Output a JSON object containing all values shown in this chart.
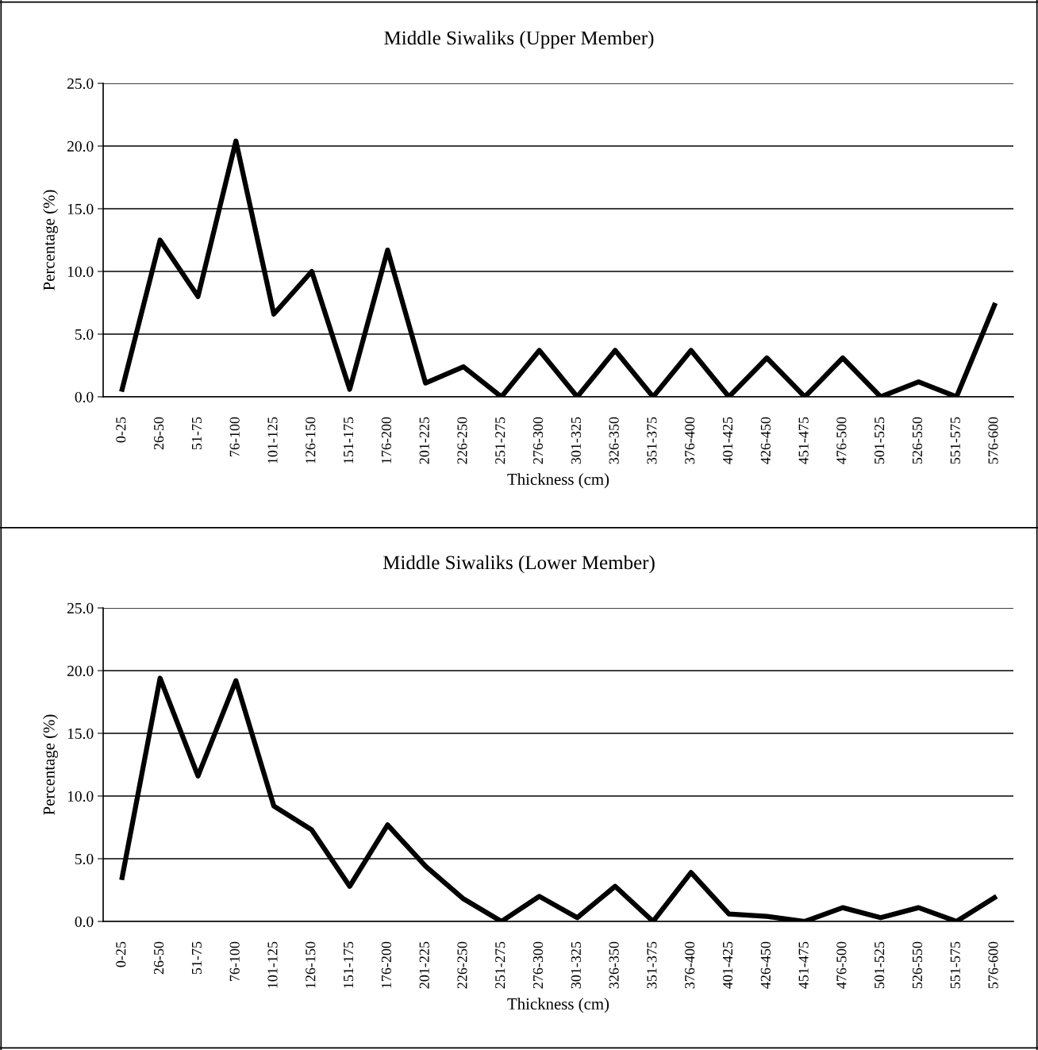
{
  "chart_data": [
    {
      "type": "line",
      "title": "Middle Siwaliks (Upper Member)",
      "xlabel": "Thickness (cm)",
      "ylabel": "Percentage (%)",
      "categories": [
        "0-25",
        "26-50",
        "51-75",
        "76-100",
        "101-125",
        "126-150",
        "151-175",
        "176-200",
        "201-225",
        "226-250",
        "251-275",
        "276-300",
        "301-325",
        "326-350",
        "351-375",
        "376-400",
        "401-425",
        "426-450",
        "451-475",
        "476-500",
        "501-525",
        "526-550",
        "551-575",
        "576-600"
      ],
      "series": [
        {
          "color": "#000000",
          "values": [
            0.6,
            12.5,
            8.0,
            20.4,
            6.6,
            10.0,
            0.6,
            11.7,
            1.1,
            2.4,
            0,
            3.7,
            0,
            3.7,
            0,
            3.7,
            0,
            3.1,
            0,
            3.1,
            0,
            1.2,
            0,
            7.3
          ]
        }
      ],
      "ylim": [
        0,
        25
      ],
      "yticks": [
        {
          "value": 0,
          "label": "0.0"
        },
        {
          "value": 5,
          "label": "5.0"
        },
        {
          "value": 10,
          "label": "10.0"
        },
        {
          "value": 15,
          "label": "15.0"
        },
        {
          "value": 20,
          "label": "20.0"
        },
        {
          "value": 25,
          "label": "25.0"
        }
      ],
      "grid": "y",
      "marker": "none",
      "line_style": "solid"
    },
    {
      "type": "line",
      "title": "Middle Siwaliks (Lower Member)",
      "xlabel": "Thickness (cm)",
      "ylabel": "Percentage (%)",
      "categories": [
        "0-25",
        "26-50",
        "51-75",
        "76-100",
        "101-125",
        "126-150",
        "151-175",
        "176-200",
        "201-225",
        "226-250",
        "251-275",
        "276-300",
        "301-325",
        "326-350",
        "351-375",
        "376-400",
        "401-425",
        "426-450",
        "451-475",
        "476-500",
        "501-525",
        "526-550",
        "551-575",
        "576-600"
      ],
      "series": [
        {
          "color": "#000000",
          "values": [
            3.5,
            19.4,
            11.6,
            19.2,
            9.2,
            7.3,
            2.8,
            7.7,
            4.4,
            1.8,
            0,
            2.0,
            0.3,
            2.8,
            0,
            3.9,
            0.6,
            0.4,
            0,
            1.1,
            0.3,
            1.1,
            0,
            1.9
          ]
        }
      ],
      "ylim": [
        0,
        25
      ],
      "yticks": [
        {
          "value": 0,
          "label": "0.0"
        },
        {
          "value": 5,
          "label": "5.0"
        },
        {
          "value": 10,
          "label": "10.0"
        },
        {
          "value": 15,
          "label": "15.0"
        },
        {
          "value": 20,
          "label": "20.0"
        },
        {
          "value": 25,
          "label": "25.0"
        }
      ],
      "grid": "y",
      "marker": "none",
      "line_style": "solid"
    }
  ]
}
